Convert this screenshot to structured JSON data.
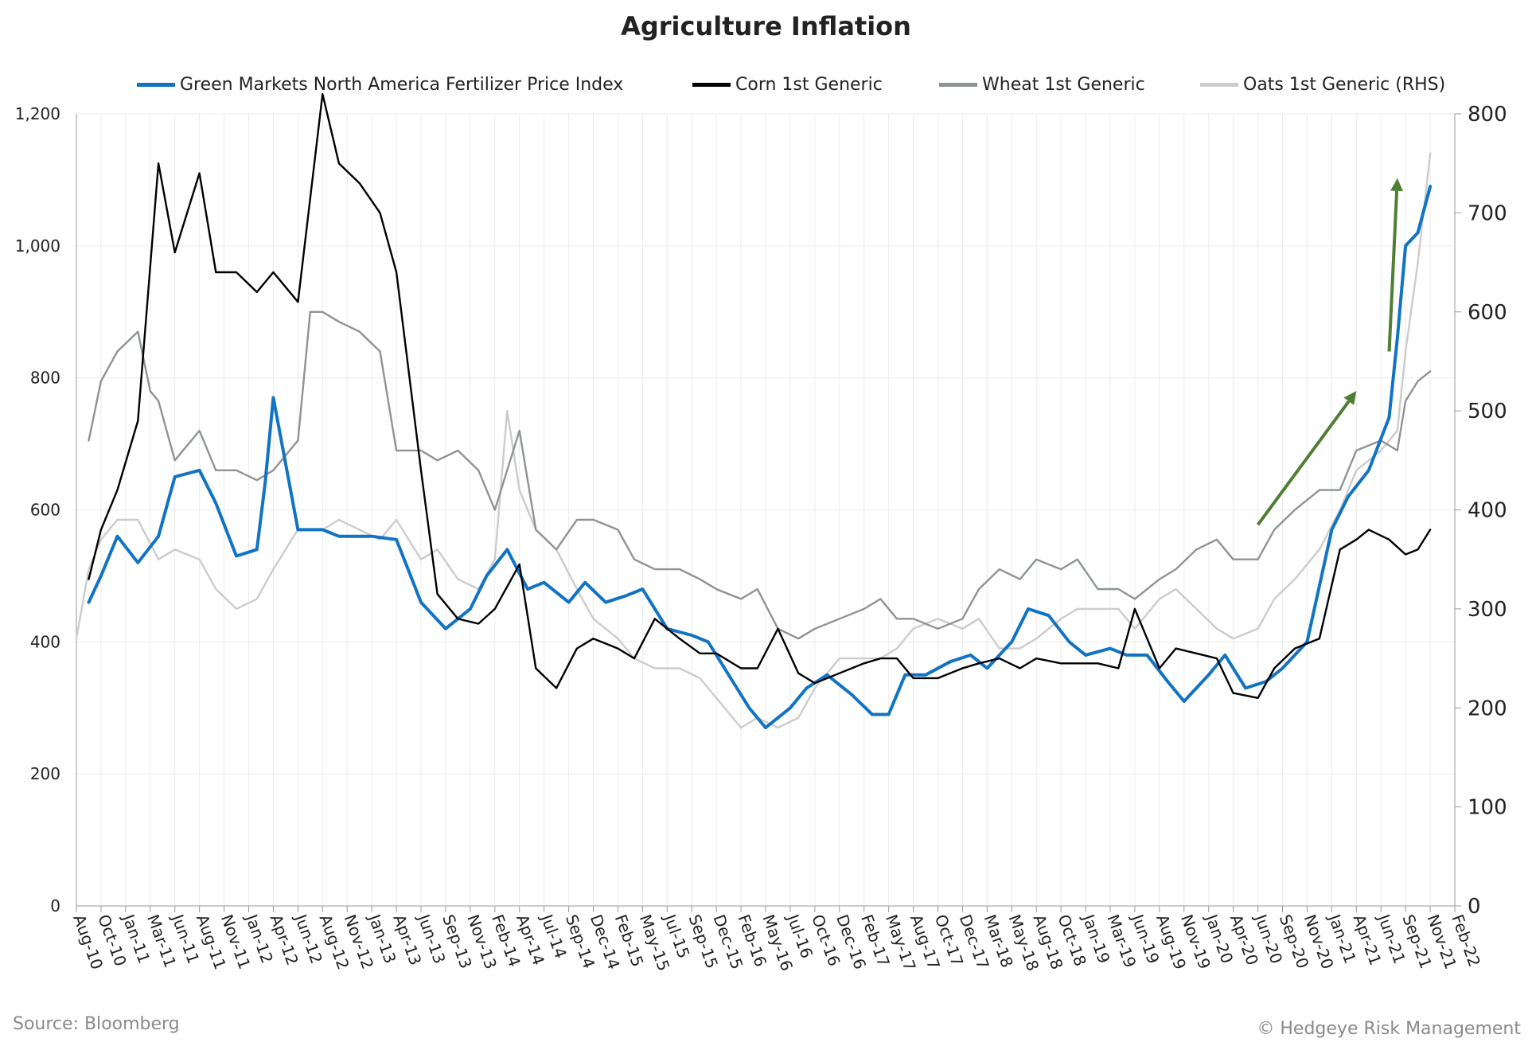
{
  "chart_data": {
    "type": "line",
    "title": "Agriculture Inflation",
    "source": "Source: Bloomberg",
    "copyright": "© Hedgeye Risk Management",
    "ylim_left": [
      0,
      1200
    ],
    "ylim_right": [
      0,
      800
    ],
    "yticks_left": [
      "0",
      "200",
      "400",
      "600",
      "800",
      "1,000",
      "1,200"
    ],
    "yticks_right": [
      "0",
      "100",
      "200",
      "300",
      "400",
      "500",
      "600",
      "700",
      "800"
    ],
    "x_tick_labels": [
      "Aug-10",
      "Oct-10",
      "Jan-11",
      "Mar-11",
      "Jun-11",
      "Aug-11",
      "Nov-11",
      "Jan-12",
      "Apr-12",
      "Jun-12",
      "Aug-12",
      "Nov-12",
      "Jan-13",
      "Apr-13",
      "Jun-13",
      "Sep-13",
      "Nov-13",
      "Feb-14",
      "Apr-14",
      "Jul-14",
      "Sep-14",
      "Dec-14",
      "Feb-15",
      "May-15",
      "Jul-15",
      "Sep-15",
      "Dec-15",
      "Feb-16",
      "May-16",
      "Jul-16",
      "Oct-16",
      "Dec-16",
      "Feb-17",
      "May-17",
      "Aug-17",
      "Oct-17",
      "Dec-17",
      "Mar-18",
      "May-18",
      "Aug-18",
      "Oct-18",
      "Jan-19",
      "Mar-19",
      "Jun-19",
      "Aug-19",
      "Nov-19",
      "Jan-20",
      "Apr-20",
      "Jun-20",
      "Sep-20",
      "Nov-20",
      "Jan-21",
      "Apr-21",
      "Jun-21",
      "Sep-21",
      "Nov-21",
      "Feb-22"
    ],
    "grid": true,
    "legend_position": "top",
    "series": [
      {
        "name": "Green Markets North America Fertilizer Price Index",
        "axis": "left",
        "color": "#1173c4",
        "x": [
          "Sep-10",
          "Oct-10",
          "Dec-10",
          "Feb-11",
          "Apr-11",
          "Jun-11",
          "Aug-11",
          "Oct-11",
          "Dec-11",
          "Feb-12",
          "Mar-12",
          "Apr-12",
          "Jun-12",
          "Aug-12",
          "Oct-12",
          "Jan-13",
          "Apr-13",
          "Jun-13",
          "Sep-13",
          "Nov-13",
          "Jan-14",
          "Mar-14",
          "May-14",
          "Jul-14",
          "Sep-14",
          "Nov-14",
          "Jan-15",
          "Mar-15",
          "May-15",
          "Jul-15",
          "Sep-15",
          "Nov-15",
          "Jan-16",
          "Mar-16",
          "May-16",
          "Jul-16",
          "Sep-16",
          "Nov-16",
          "Jan-17",
          "Mar-17",
          "May-17",
          "Jul-17",
          "Sep-17",
          "Nov-17",
          "Jan-18",
          "Mar-18",
          "May-18",
          "Jul-18",
          "Sep-18",
          "Nov-18",
          "Jan-19",
          "Mar-19",
          "May-19",
          "Jul-19",
          "Sep-19",
          "Nov-19",
          "Jan-20",
          "Mar-20",
          "May-20",
          "Jul-20",
          "Sep-20",
          "Nov-20",
          "Jan-21",
          "Mar-21",
          "May-21",
          "Jul-21",
          "Aug-21",
          "Sep-21",
          "Oct-21",
          "Nov-21"
        ],
        "values": [
          460,
          500,
          560,
          520,
          560,
          650,
          660,
          610,
          530,
          540,
          640,
          770,
          570,
          570,
          560,
          560,
          555,
          460,
          420,
          450,
          500,
          540,
          480,
          490,
          460,
          490,
          460,
          470,
          480,
          420,
          410,
          400,
          350,
          300,
          270,
          300,
          330,
          350,
          320,
          290,
          290,
          350,
          350,
          370,
          380,
          360,
          400,
          450,
          440,
          400,
          380,
          390,
          380,
          380,
          340,
          310,
          350,
          380,
          330,
          340,
          360,
          400,
          570,
          620,
          660,
          740,
          860,
          1000,
          1020,
          1090
        ]
      },
      {
        "name": "Corn 1st Generic",
        "axis": "right",
        "color": "#000000",
        "x": [
          "Sep-10",
          "Oct-10",
          "Dec-10",
          "Feb-11",
          "Apr-11",
          "Jun-11",
          "Aug-11",
          "Oct-11",
          "Dec-11",
          "Feb-12",
          "Apr-12",
          "Jun-12",
          "Aug-12",
          "Oct-12",
          "Dec-12",
          "Feb-13",
          "Apr-13",
          "Jun-13",
          "Aug-13",
          "Oct-13",
          "Dec-13",
          "Feb-14",
          "Apr-14",
          "Jun-14",
          "Aug-14",
          "Oct-14",
          "Dec-14",
          "Feb-15",
          "Apr-15",
          "Jun-15",
          "Aug-15",
          "Oct-15",
          "Dec-15",
          "Feb-16",
          "Apr-16",
          "Jun-16",
          "Aug-16",
          "Oct-16",
          "Dec-16",
          "Feb-17",
          "Apr-17",
          "Jun-17",
          "Aug-17",
          "Oct-17",
          "Dec-17",
          "Feb-18",
          "Apr-18",
          "Jun-18",
          "Aug-18",
          "Oct-18",
          "Dec-18",
          "Feb-19",
          "Apr-19",
          "Jun-19",
          "Aug-19",
          "Oct-19",
          "Dec-19",
          "Feb-20",
          "Apr-20",
          "Jun-20",
          "Aug-20",
          "Oct-20",
          "Dec-20",
          "Feb-21",
          "Apr-21",
          "May-21",
          "Jul-21",
          "Sep-21",
          "Oct-21",
          "Nov-21"
        ],
        "values": [
          330,
          380,
          420,
          490,
          750,
          660,
          740,
          640,
          640,
          620,
          640,
          610,
          820,
          750,
          730,
          700,
          640,
          440,
          315,
          290,
          285,
          300,
          345,
          240,
          220,
          260,
          270,
          260,
          250,
          290,
          270,
          255,
          255,
          240,
          240,
          280,
          235,
          225,
          235,
          245,
          250,
          250,
          230,
          230,
          240,
          245,
          250,
          240,
          250,
          245,
          245,
          245,
          240,
          300,
          240,
          260,
          255,
          250,
          215,
          210,
          240,
          260,
          270,
          360,
          370,
          380,
          370,
          355,
          360,
          380
        ]
      },
      {
        "name": "Wheat 1st Generic",
        "axis": "right",
        "color": "#8e9397",
        "x": [
          "Sep-10",
          "Oct-10",
          "Dec-10",
          "Feb-11",
          "Mar-11",
          "Apr-11",
          "Jun-11",
          "Aug-11",
          "Oct-11",
          "Dec-11",
          "Feb-12",
          "Apr-12",
          "Jun-12",
          "Jul-12",
          "Aug-12",
          "Oct-12",
          "Dec-12",
          "Feb-13",
          "Apr-13",
          "Jun-13",
          "Aug-13",
          "Oct-13",
          "Dec-13",
          "Feb-14",
          "Apr-14",
          "Jun-14",
          "Aug-14",
          "Oct-14",
          "Dec-14",
          "Feb-15",
          "Apr-15",
          "Jun-15",
          "Aug-15",
          "Oct-15",
          "Dec-15",
          "Feb-16",
          "Apr-16",
          "Jun-16",
          "Aug-16",
          "Oct-16",
          "Dec-16",
          "Feb-17",
          "Apr-17",
          "Jun-17",
          "Aug-17",
          "Oct-17",
          "Dec-17",
          "Feb-18",
          "Apr-18",
          "Jun-18",
          "Aug-18",
          "Oct-18",
          "Dec-18",
          "Feb-19",
          "Apr-19",
          "Jun-19",
          "Aug-19",
          "Oct-19",
          "Dec-19",
          "Feb-20",
          "Apr-20",
          "Jun-20",
          "Aug-20",
          "Oct-20",
          "Dec-20",
          "Feb-21",
          "Apr-21",
          "Jun-21",
          "Aug-21",
          "Sep-21",
          "Oct-21",
          "Nov-21"
        ],
        "values": [
          470,
          530,
          560,
          580,
          520,
          510,
          450,
          480,
          440,
          440,
          430,
          440,
          470,
          600,
          600,
          590,
          580,
          560,
          460,
          460,
          450,
          460,
          440,
          400,
          480,
          380,
          360,
          390,
          390,
          380,
          350,
          340,
          340,
          330,
          320,
          310,
          320,
          280,
          270,
          280,
          290,
          300,
          310,
          290,
          290,
          280,
          290,
          320,
          340,
          330,
          350,
          340,
          350,
          320,
          320,
          310,
          330,
          340,
          360,
          370,
          350,
          350,
          380,
          400,
          420,
          420,
          460,
          470,
          460,
          510,
          530,
          540
        ]
      },
      {
        "name": "Oats 1st Generic (RHS)",
        "axis": "right",
        "color": "#cccccc",
        "x": [
          "Aug-10",
          "Sep-10",
          "Oct-10",
          "Dec-10",
          "Feb-11",
          "Apr-11",
          "Jun-11",
          "Aug-11",
          "Oct-11",
          "Dec-11",
          "Feb-12",
          "Apr-12",
          "Jun-12",
          "Aug-12",
          "Oct-12",
          "Dec-12",
          "Feb-13",
          "Apr-13",
          "Jun-13",
          "Aug-13",
          "Oct-13",
          "Dec-13",
          "Feb-14",
          "Mar-14",
          "Apr-14",
          "Jun-14",
          "Aug-14",
          "Oct-14",
          "Dec-14",
          "Feb-15",
          "Apr-15",
          "Jun-15",
          "Aug-15",
          "Oct-15",
          "Dec-15",
          "Feb-16",
          "Apr-16",
          "Jun-16",
          "Aug-16",
          "Oct-16",
          "Dec-16",
          "Feb-17",
          "Apr-17",
          "Jun-17",
          "Aug-17",
          "Oct-17",
          "Dec-17",
          "Feb-18",
          "Apr-18",
          "Jun-18",
          "Aug-18",
          "Oct-18",
          "Dec-18",
          "Feb-19",
          "Apr-19",
          "Jun-19",
          "Aug-19",
          "Oct-19",
          "Dec-19",
          "Feb-20",
          "Apr-20",
          "Jun-20",
          "Aug-20",
          "Oct-20",
          "Dec-20",
          "Feb-21",
          "Apr-21",
          "Jun-21",
          "Aug-21",
          "Sep-21",
          "Oct-21",
          "Nov-21"
        ],
        "values": [
          270,
          340,
          370,
          390,
          390,
          350,
          360,
          350,
          320,
          300,
          310,
          340,
          380,
          380,
          390,
          380,
          370,
          390,
          350,
          360,
          330,
          320,
          350,
          500,
          420,
          380,
          360,
          320,
          290,
          270,
          250,
          240,
          240,
          230,
          210,
          180,
          190,
          180,
          190,
          220,
          250,
          250,
          250,
          260,
          280,
          290,
          280,
          290,
          260,
          260,
          270,
          290,
          300,
          300,
          300,
          280,
          310,
          320,
          300,
          280,
          270,
          280,
          310,
          330,
          360,
          400,
          440,
          460,
          480,
          560,
          650,
          760
        ]
      }
    ],
    "annotations": [
      {
        "type": "arrow",
        "color": "#4e7f33",
        "from": [
          "Jun-20",
          385
        ],
        "to": [
          "Apr-21",
          520
        ],
        "axis": "right"
      },
      {
        "type": "arrow",
        "color": "#4e7f33",
        "from": [
          "Jul-21",
          560
        ],
        "to": [
          "Aug-21",
          735
        ],
        "axis": "right"
      }
    ]
  }
}
